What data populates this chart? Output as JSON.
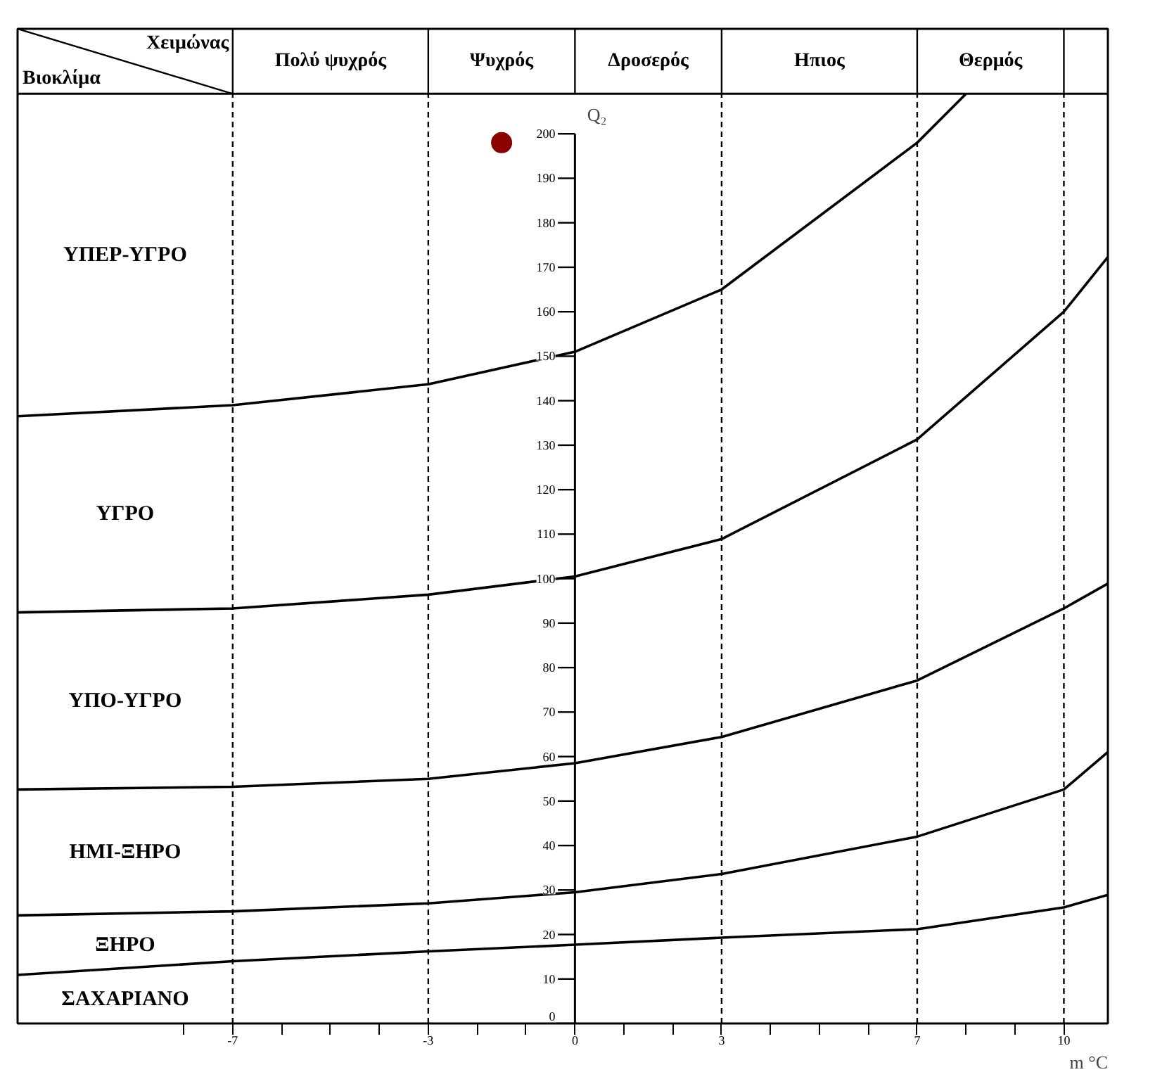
{
  "chart_data": {
    "type": "line",
    "xlabel": "m °C",
    "ylabel": "Q₂",
    "xlim": [
      -11.4,
      10.9
    ],
    "ylim": [
      0,
      209
    ],
    "xticks": [
      {
        "value": -8,
        "label": null
      },
      -7,
      {
        "value": -6,
        "label": null
      },
      {
        "value": -5,
        "label": null
      },
      {
        "value": -4,
        "label": null
      },
      -3,
      {
        "value": -2,
        "label": null
      },
      {
        "value": -1,
        "label": null
      },
      0,
      {
        "value": 1,
        "label": null
      },
      {
        "value": 2,
        "label": null
      },
      3,
      {
        "value": 4,
        "label": null
      },
      {
        "value": 5,
        "label": null
      },
      {
        "value": 6,
        "label": null
      },
      7,
      {
        "value": 8,
        "label": null
      },
      {
        "value": 9,
        "label": null
      },
      10
    ],
    "yticks": [
      0,
      10,
      20,
      30,
      40,
      50,
      60,
      70,
      80,
      90,
      100,
      110,
      120,
      130,
      140,
      150,
      160,
      170,
      180,
      190,
      200
    ],
    "x": [
      -11.4,
      -7,
      -3,
      0,
      3,
      7,
      10,
      10.9
    ],
    "series": [
      {
        "color": "#000000",
        "x": [
          -11.4,
          -7,
          -3,
          0,
          3,
          7,
          8.0
        ],
        "values": [
          136.5,
          139,
          143.7,
          151,
          165,
          198,
          209
        ]
      },
      {
        "color": "#000000",
        "values": [
          92.4,
          93.3,
          96.4,
          100.5,
          108.9,
          131.3,
          160,
          172.3
        ]
      },
      {
        "color": "#000000",
        "values": [
          52.6,
          53.2,
          55,
          58.5,
          64.4,
          77.1,
          93.3,
          98.9
        ]
      },
      {
        "color": "#000000",
        "values": [
          24.3,
          25.2,
          27,
          29.5,
          33.6,
          42,
          52.6,
          61
        ]
      },
      {
        "color": "#000000",
        "values": [
          10.9,
          14,
          16.2,
          17.7,
          19.3,
          21.2,
          26.1,
          28.9
        ]
      },
      {
        "type": "scatter",
        "color": "#8b0000",
        "x": [
          -1.5
        ],
        "values": [
          198
        ]
      }
    ],
    "ref_lines": [
      {
        "axis": "x",
        "value": -7,
        "line_style": "dashed"
      },
      {
        "axis": "x",
        "value": -3,
        "line_style": "dashed"
      },
      {
        "axis": "x",
        "value": 3,
        "line_style": "dashed"
      },
      {
        "axis": "x",
        "value": 7,
        "line_style": "dashed"
      },
      {
        "axis": "x",
        "value": 10,
        "line_style": "dashed"
      }
    ],
    "annotations": [
      "Χειμώνας",
      "Βιοκλίμα",
      "Πολύ ψυχρός",
      "Ψυχρός",
      "Δροσερός",
      "Ηπιος",
      "Θερμός",
      "ΥΠΕΡ-ΥΓΡΟ",
      "ΥΓΡΟ",
      "ΥΠΟ-ΥΓΡΟ",
      "ΗΜΙ-ΞΗΡΟ",
      "ΞΗΡΟ",
      "ΣΑΧΑΡΙΑΝΟ"
    ]
  }
}
